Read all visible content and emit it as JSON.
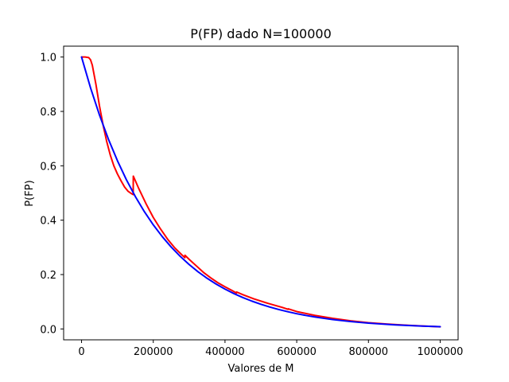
{
  "chart_data": {
    "type": "line",
    "title": "P(FP) dado N=100000",
    "xlabel": "Valores de M",
    "ylabel": "P(FP)",
    "xlim": [
      -50000,
      1050000
    ],
    "ylim": [
      -0.04,
      1.04
    ],
    "xticks": [
      0,
      200000,
      400000,
      600000,
      800000,
      1000000
    ],
    "xtick_labels": [
      "0",
      "200000",
      "400000",
      "600000",
      "800000",
      "1000000"
    ],
    "yticks": [
      0.0,
      0.2,
      0.4,
      0.6,
      0.8,
      1.0
    ],
    "ytick_labels": [
      "0.0",
      "0.2",
      "0.4",
      "0.6",
      "0.8",
      "1.0"
    ],
    "grid": false,
    "legend": "none",
    "series": [
      {
        "color": "#ff0000",
        "x": [
          0,
          10000,
          20000,
          25000,
          30000,
          40000,
          50000,
          60000,
          70000,
          80000,
          90000,
          100000,
          110000,
          120000,
          130000,
          140000,
          144000,
          144300,
          150000,
          160000,
          180000,
          200000,
          220000,
          240000,
          260000,
          280000,
          288000,
          288300,
          300000,
          320000,
          340000,
          360000,
          380000,
          400000,
          420000,
          432000,
          432300,
          450000,
          480000,
          520000,
          560000,
          576000,
          576300,
          600000,
          650000,
          700000,
          750000,
          800000,
          850000,
          900000,
          950000,
          1000000
        ],
        "y": [
          1.0,
          1.0,
          0.998,
          0.99,
          0.97,
          0.9,
          0.82,
          0.75,
          0.69,
          0.64,
          0.6,
          0.57,
          0.545,
          0.522,
          0.506,
          0.497,
          0.494,
          0.562,
          0.545,
          0.515,
          0.46,
          0.41,
          0.368,
          0.33,
          0.298,
          0.272,
          0.262,
          0.271,
          0.256,
          0.232,
          0.208,
          0.188,
          0.17,
          0.155,
          0.141,
          0.132,
          0.136,
          0.126,
          0.111,
          0.094,
          0.079,
          0.072,
          0.074,
          0.064,
          0.05,
          0.039,
          0.03,
          0.023,
          0.018,
          0.014,
          0.011,
          0.008
        ]
      },
      {
        "color": "#0000ff",
        "x": [
          0,
          25000,
          50000,
          75000,
          100000,
          125000,
          150000,
          175000,
          200000,
          225000,
          250000,
          275000,
          300000,
          325000,
          350000,
          375000,
          400000,
          425000,
          450000,
          475000,
          500000,
          525000,
          550000,
          575000,
          600000,
          625000,
          650000,
          675000,
          700000,
          725000,
          750000,
          775000,
          800000,
          825000,
          850000,
          875000,
          900000,
          925000,
          950000,
          975000,
          1000000
        ],
        "y": [
          1.0,
          0.8869,
          0.7866,
          0.6977,
          0.6188,
          0.5488,
          0.4868,
          0.4317,
          0.3829,
          0.3396,
          0.3012,
          0.2671,
          0.2369,
          0.2101,
          0.1864,
          0.1653,
          0.1466,
          0.13,
          0.1153,
          0.1023,
          0.0907,
          0.0805,
          0.0714,
          0.0633,
          0.0561,
          0.0498,
          0.0442,
          0.0392,
          0.0347,
          0.0308,
          0.0273,
          0.0242,
          0.0215,
          0.0191,
          0.0169,
          0.015,
          0.0133,
          0.0118,
          0.0105,
          0.0093,
          0.0082
        ]
      }
    ]
  }
}
